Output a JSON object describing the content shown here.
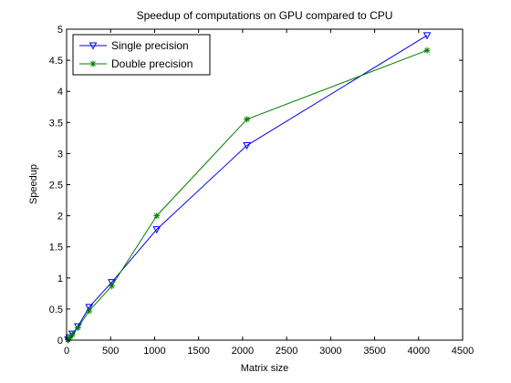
{
  "chart_data": {
    "type": "line",
    "title": "Speedup of computations on GPU compared to CPU",
    "xlabel": "Matrix size",
    "ylabel": "Speedup",
    "xlim": [
      0,
      4500
    ],
    "ylim": [
      0,
      5
    ],
    "xticks": [
      0,
      500,
      1000,
      1500,
      2000,
      2500,
      3000,
      3500,
      4000,
      4500
    ],
    "yticks": [
      0,
      0.5,
      1,
      1.5,
      2,
      2.5,
      3,
      3.5,
      4,
      4.5,
      5
    ],
    "grid": false,
    "legend_position": "top-left",
    "series": [
      {
        "name": "Single precision",
        "color": "#0000ff",
        "marker": "triangle-down",
        "x": [
          16,
          32,
          64,
          128,
          256,
          512,
          1024,
          2048,
          4096
        ],
        "y": [
          0.01,
          0.04,
          0.1,
          0.22,
          0.53,
          0.93,
          1.78,
          3.13,
          4.9
        ]
      },
      {
        "name": "Double precision",
        "color": "#007f00",
        "marker": "asterisk",
        "x": [
          16,
          32,
          64,
          128,
          256,
          512,
          1024,
          2048,
          4096
        ],
        "y": [
          0.01,
          0.03,
          0.09,
          0.2,
          0.47,
          0.87,
          2.0,
          3.55,
          4.66
        ]
      }
    ]
  }
}
